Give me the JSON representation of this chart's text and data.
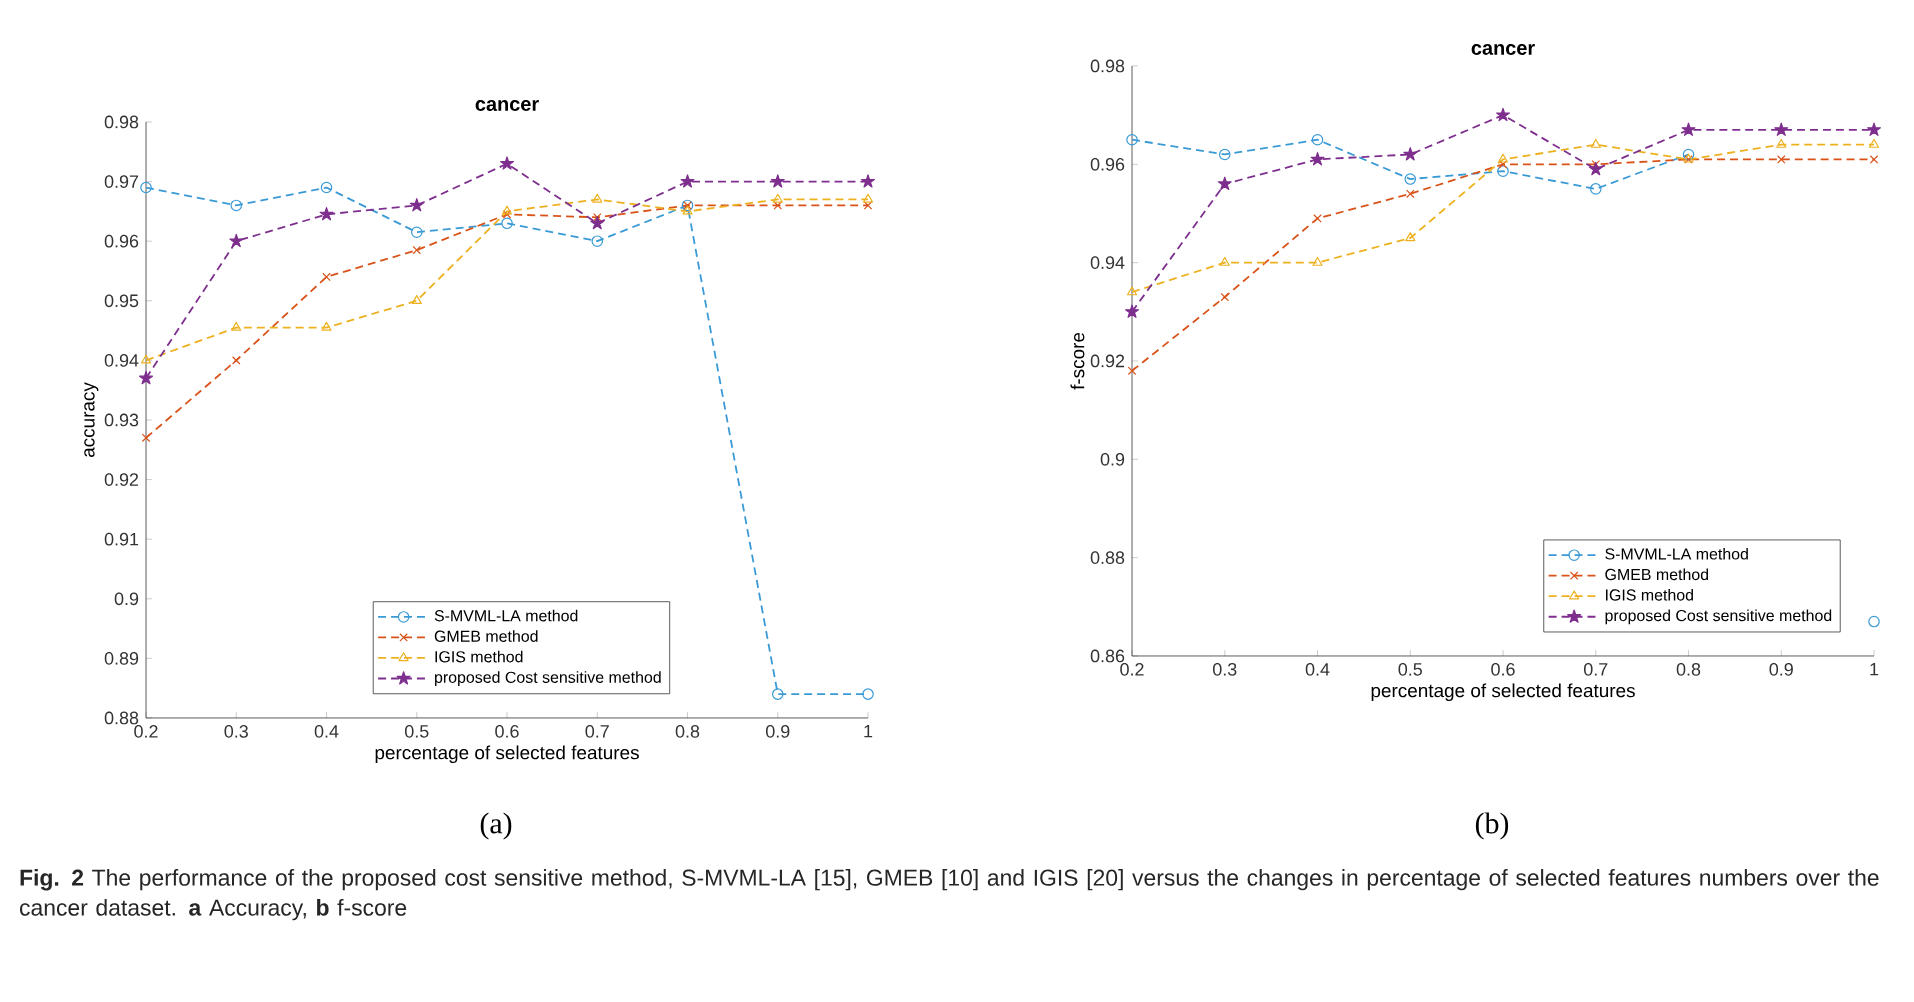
{
  "chart_data": [
    {
      "type": "line",
      "title": "cancer",
      "xlabel": "percentage of selected features",
      "ylabel": "accuracy",
      "x": [
        0.2,
        0.3,
        0.4,
        0.5,
        0.6,
        0.7,
        0.8,
        0.9,
        1
      ],
      "xlim": [
        0.2,
        1
      ],
      "xticks": [
        0.2,
        0.3,
        0.4,
        0.5,
        0.6,
        0.7,
        0.8,
        0.9,
        1
      ],
      "ylim": [
        0.88,
        0.98
      ],
      "yticks": [
        0.88,
        0.89,
        0.9,
        0.91,
        0.92,
        0.93,
        0.94,
        0.95,
        0.96,
        0.97,
        0.98
      ],
      "legend": "bottom",
      "line_style": "dashed",
      "annotations": [
        "(a)"
      ],
      "series": [
        {
          "name": "S-MVML-LA method",
          "color": "#3a9ad6",
          "marker": "circle",
          "values": [
            0.969,
            0.966,
            0.969,
            0.9615,
            0.963,
            0.96,
            0.966,
            0.884,
            0.884
          ]
        },
        {
          "name": "GMEB method",
          "color": "#d95319",
          "marker": "cross",
          "values": [
            0.927,
            0.94,
            0.954,
            0.9585,
            0.9645,
            0.964,
            0.966,
            0.966,
            0.966
          ]
        },
        {
          "name": "IGIS method",
          "color": "#edb120",
          "marker": "triangle",
          "values": [
            0.94,
            0.9455,
            0.9455,
            0.95,
            0.965,
            0.967,
            0.965,
            0.967,
            0.967
          ]
        },
        {
          "name": "proposed Cost sensitive method",
          "color": "#7e2f8e",
          "marker": "star",
          "values": [
            0.937,
            0.96,
            0.9645,
            0.966,
            0.973,
            0.963,
            0.97,
            0.97,
            0.97
          ]
        }
      ]
    },
    {
      "type": "line",
      "title": "cancer",
      "xlabel": "percentage of selected features",
      "ylabel": "f-score",
      "x": [
        0.2,
        0.3,
        0.4,
        0.5,
        0.6,
        0.7,
        0.8,
        0.9,
        1
      ],
      "xlim": [
        0.2,
        1
      ],
      "xticks": [
        0.2,
        0.3,
        0.4,
        0.5,
        0.6,
        0.7,
        0.8,
        0.9,
        1
      ],
      "ylim": [
        0.86,
        0.98
      ],
      "yticks": [
        0.86,
        0.88,
        0.9,
        0.92,
        0.94,
        0.96,
        0.98
      ],
      "legend": "bottom right",
      "line_style": "dashed",
      "annotations": [
        "(b)",
        "**Fig. 2** The performance of the proposed cost sensitive method, S-MVML-LA [15], GMEB [10] and IGIS [20] versus the changes in percentage of selected features numbers over the cancer dataset. **a** Accuracy, **b** f-score"
      ],
      "series": [
        {
          "name": "S-MVML-LA method",
          "color": "#3a9ad6",
          "marker": "circle",
          "values": [
            0.965,
            0.962,
            0.965,
            0.957,
            0.9586,
            0.955,
            0.962,
            null,
            0.867
          ]
        },
        {
          "name": "GMEB method",
          "color": "#d95319",
          "marker": "cross",
          "values": [
            0.918,
            0.933,
            0.949,
            0.954,
            0.96,
            0.96,
            0.961,
            0.961,
            0.961
          ]
        },
        {
          "name": "IGIS method",
          "color": "#edb120",
          "marker": "triangle",
          "values": [
            0.934,
            0.94,
            0.94,
            0.945,
            0.961,
            0.964,
            0.961,
            0.964,
            0.964
          ]
        },
        {
          "name": "proposed Cost sensitive method",
          "color": "#7e2f8e",
          "marker": "star",
          "values": [
            0.93,
            0.956,
            0.961,
            0.962,
            0.97,
            0.959,
            0.967,
            0.967,
            0.967
          ]
        }
      ]
    }
  ]
}
